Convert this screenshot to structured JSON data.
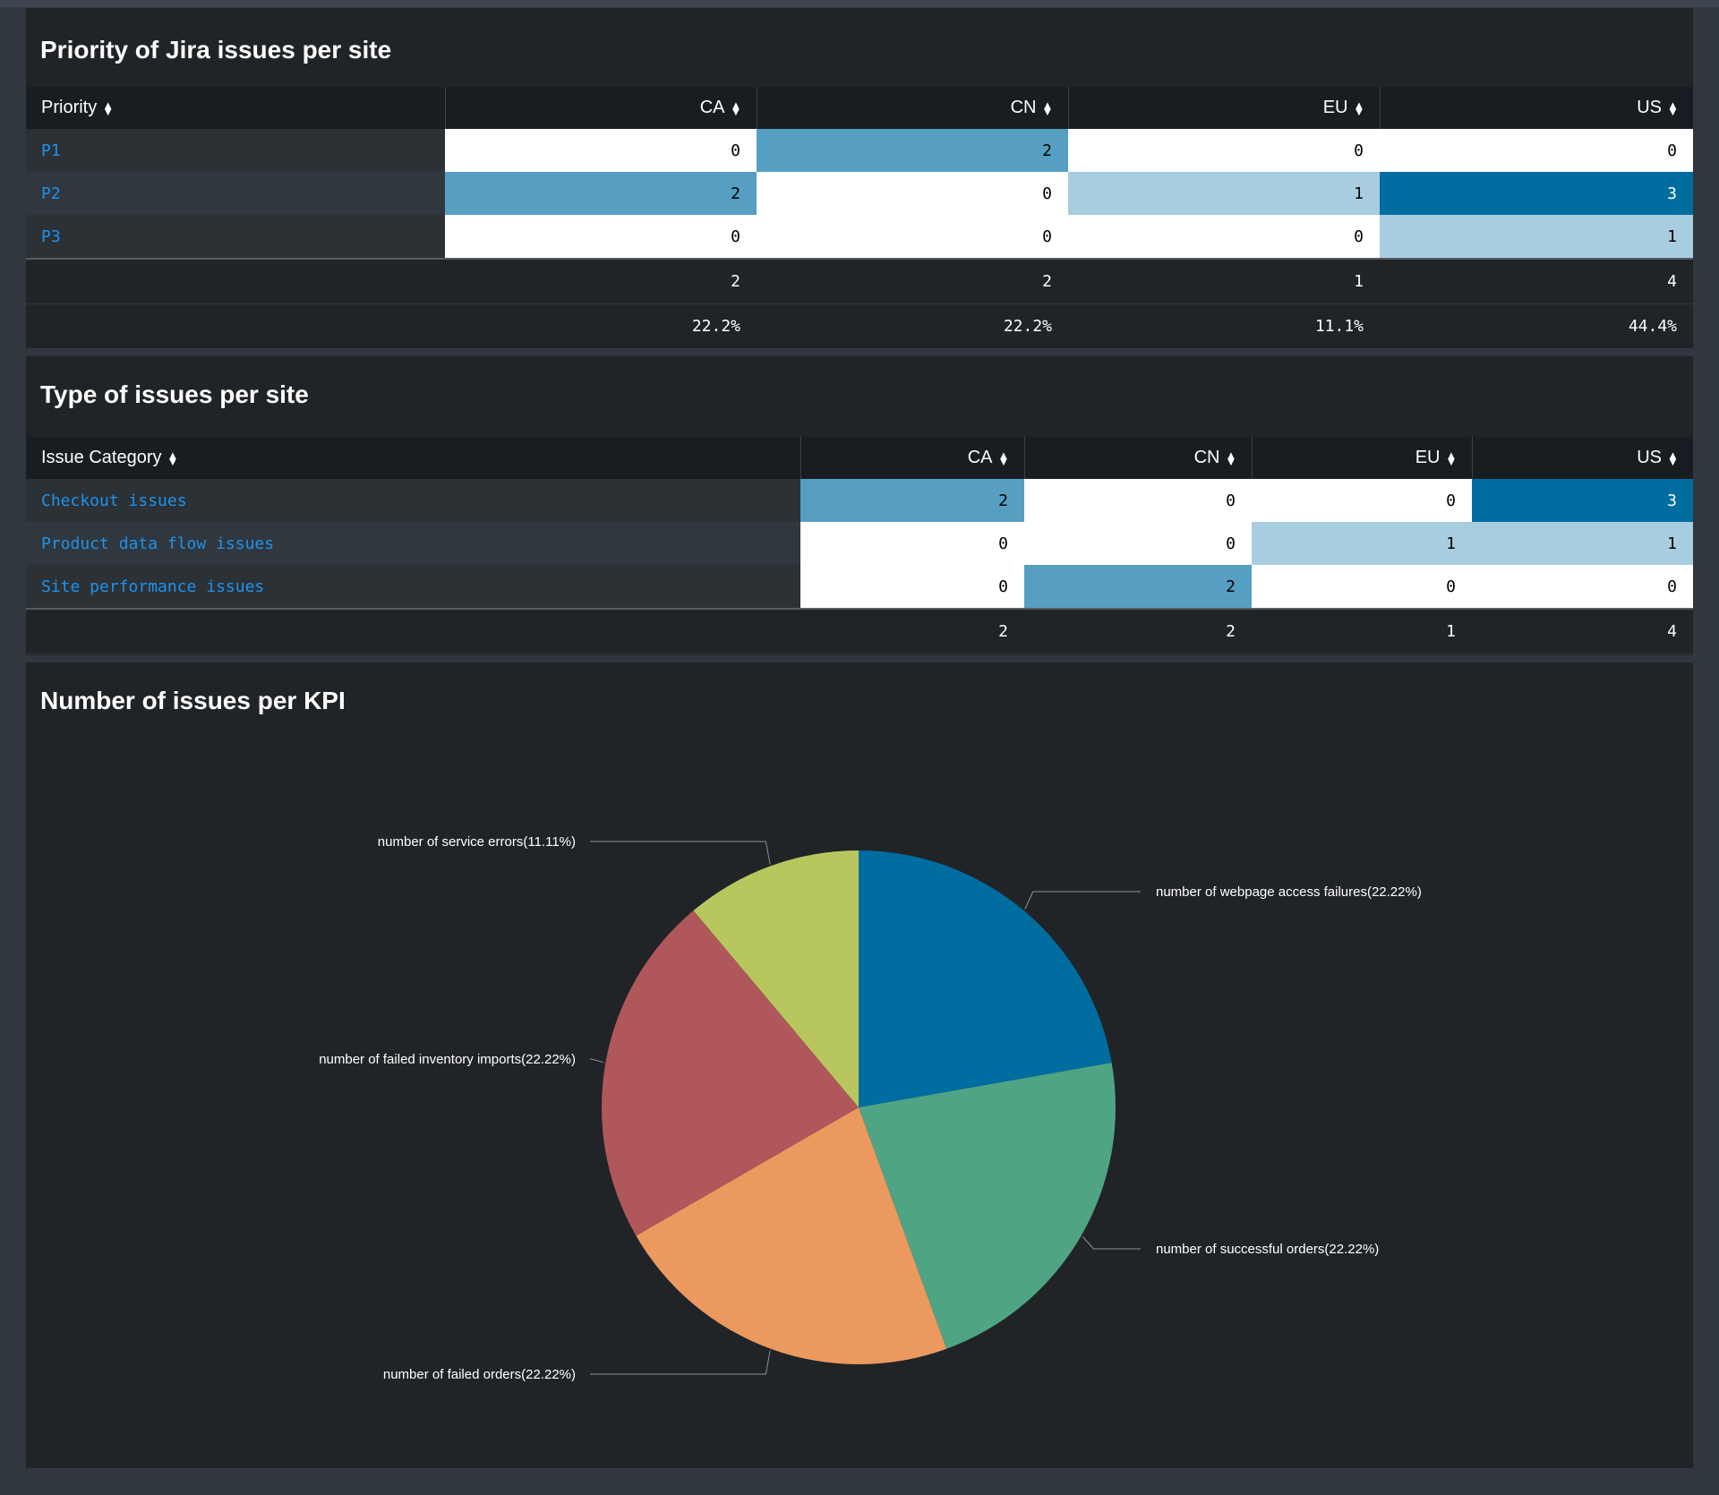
{
  "priority_panel": {
    "title": "Priority of Jira issues per site",
    "header": [
      "Priority",
      "CA",
      "CN",
      "EU",
      "US"
    ],
    "rows": [
      {
        "label": "P1",
        "values": [
          "0",
          "2",
          "0",
          "0"
        ]
      },
      {
        "label": "P2",
        "values": [
          "2",
          "0",
          "1",
          "3"
        ]
      },
      {
        "label": "P3",
        "values": [
          "0",
          "0",
          "0",
          "1"
        ]
      }
    ],
    "totals": [
      "2",
      "2",
      "1",
      "4"
    ],
    "percents": [
      "22.2%",
      "22.2%",
      "11.1%",
      "44.4%"
    ]
  },
  "type_panel": {
    "title": "Type of issues per site",
    "header": [
      "Issue Category",
      "CA",
      "CN",
      "EU",
      "US"
    ],
    "rows": [
      {
        "label": "Checkout issues",
        "values": [
          "2",
          "0",
          "0",
          "3"
        ]
      },
      {
        "label": "Product data flow issues",
        "values": [
          "0",
          "0",
          "1",
          "1"
        ]
      },
      {
        "label": "Site performance issues",
        "values": [
          "0",
          "2",
          "0",
          "0"
        ]
      }
    ],
    "totals": [
      "2",
      "2",
      "1",
      "4"
    ]
  },
  "kpi_panel": {
    "title": "Number of issues per KPI"
  },
  "sort_icon": "sort-icon",
  "heatmap_colors": {
    "zero": "#ffffff",
    "one": "#a8cde0",
    "two": "#569fc2",
    "three": "#006da1"
  },
  "chart_data": {
    "type": "pie",
    "labels": [
      "number of webpage access failures(22.22%)",
      "number of successful orders(22.22%)",
      "number of failed orders(22.22%)",
      "number of failed inventory imports(22.22%)",
      "number of service errors(11.11%)"
    ],
    "values": [
      2,
      2,
      2,
      2,
      1
    ],
    "colors": [
      "#006da1",
      "#4fa484",
      "#ec9960",
      "#af575a",
      "#b8c75d"
    ]
  }
}
